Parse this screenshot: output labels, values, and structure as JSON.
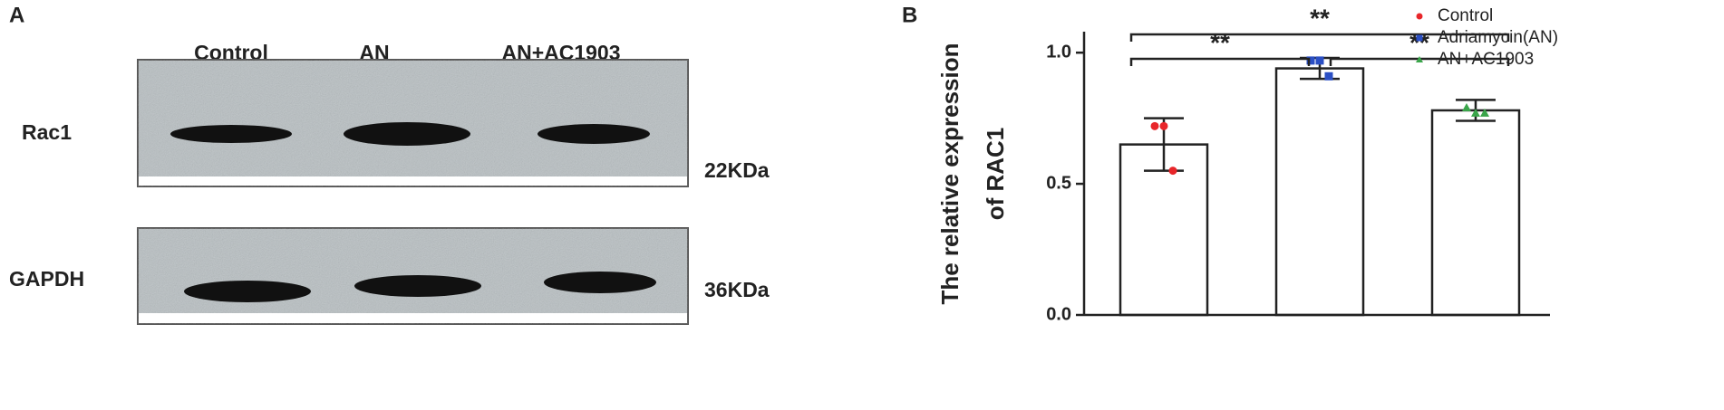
{
  "panels": [
    "A",
    "B"
  ],
  "blot": {
    "lanes": [
      "Control",
      "AN",
      "AN+AC1903"
    ],
    "rows": [
      {
        "name": "Rac1",
        "size": "22KDa"
      },
      {
        "name": "GAPDH",
        "size": "36KDa"
      }
    ]
  },
  "chart_data": {
    "type": "bar",
    "ylabel": [
      "The relative expression",
      "of  RAC1"
    ],
    "categories": [
      "Control",
      "Adriamycin(AN)",
      "AN+AC1903"
    ],
    "values": [
      0.65,
      0.94,
      0.78
    ],
    "errors": [
      0.1,
      0.04,
      0.04
    ],
    "colors": [
      "#e8262a",
      "#2b4fc4",
      "#3aa54a"
    ],
    "points": [
      [
        0.72,
        0.72,
        0.55
      ],
      [
        0.97,
        0.97,
        0.91
      ],
      [
        0.79,
        0.77,
        0.77
      ]
    ],
    "annotations": [
      "**",
      "**",
      "**"
    ],
    "ylim": [
      0,
      1.08
    ],
    "yticks": [
      {
        "value": 0,
        "label": "0.0"
      },
      0.5,
      {
        "value": 1,
        "label": "1.0"
      }
    ],
    "legend": "upper right"
  }
}
